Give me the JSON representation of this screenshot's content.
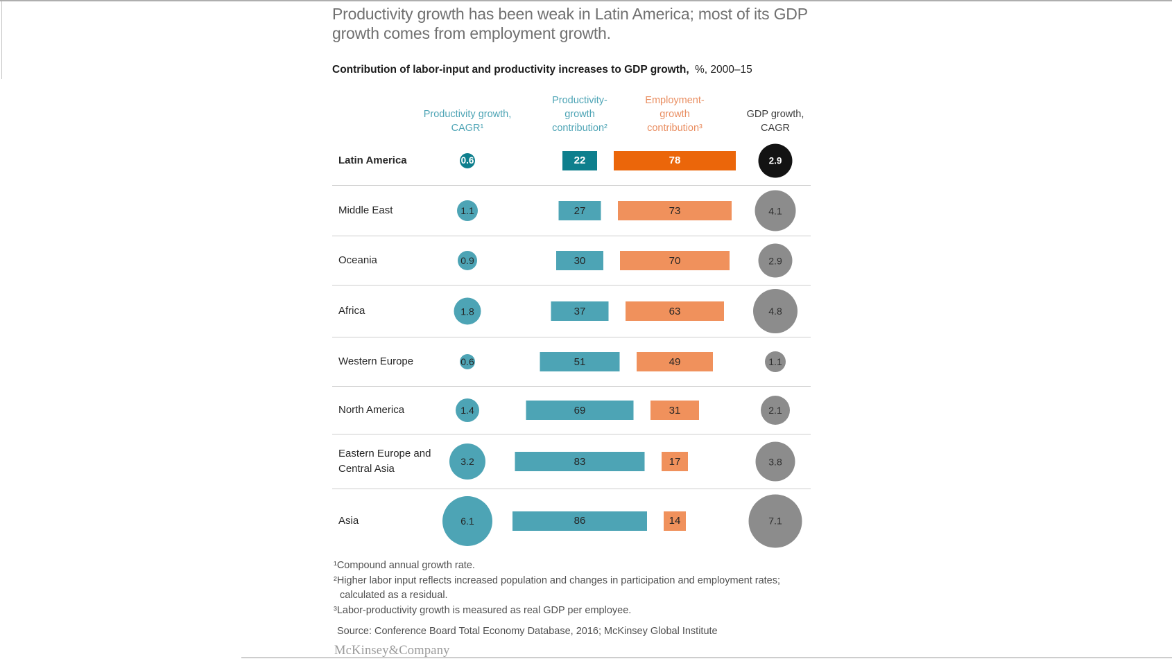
{
  "page": {
    "title": "Productivity growth has been weak in Latin America; most of its GDP growth comes from employment growth.",
    "heading_bold": "Contribution of labor-input and productivity increases to GDP growth,",
    "heading_units": "%, 2000–15",
    "footnotes": [
      "¹Compound annual growth rate.",
      "²Higher labor input reflects increased population and changes in participation and employment rates; calculated as a residual.",
      "³Labor-productivity growth is measured as real GDP per employee."
    ],
    "source": "Source: Conference Board Total Economy Database, 2016; McKinsey Global Institute",
    "logo": "McKinsey&Company"
  },
  "columns": [
    {
      "label": "Productivity growth, CAGR¹",
      "color": "#4da4b5"
    },
    {
      "label": "Productivity-growth contribution²",
      "color": "#4da4b5"
    },
    {
      "label": "Employment-growth contribution³",
      "color": "#e98d60"
    },
    {
      "label": "GDP growth, CAGR",
      "color": "#3c3c3c"
    }
  ],
  "chart_data": {
    "type": "bar",
    "title": "Contribution of labor-input and productivity increases to GDP growth",
    "units": "%",
    "period": "2000–15",
    "categories": [
      "Latin America",
      "Middle East",
      "Oceania",
      "Africa",
      "Western Europe",
      "North America",
      "Eastern Europe and Central Asia",
      "Asia"
    ],
    "series": [
      {
        "name": "Productivity growth, CAGR",
        "display": "circle",
        "values": [
          0.6,
          1.1,
          0.9,
          1.8,
          0.6,
          1.4,
          3.2,
          6.1
        ]
      },
      {
        "name": "Productivity-growth contribution",
        "display": "bar",
        "values": [
          22,
          27,
          30,
          37,
          51,
          69,
          83,
          86
        ]
      },
      {
        "name": "Employment-growth contribution",
        "display": "bar",
        "values": [
          78,
          73,
          70,
          63,
          49,
          31,
          17,
          14
        ]
      },
      {
        "name": "GDP growth, CAGR",
        "display": "circle",
        "values": [
          2.9,
          4.1,
          2.9,
          4.8,
          1.1,
          2.1,
          3.8,
          7.1
        ]
      }
    ],
    "highlighted_category": "Latin America",
    "legend_position": "top",
    "layout_hint": "bar width proportional to percent; circle area proportional to CAGR; bars and circles center-aligned per column"
  },
  "colors": {
    "teal": "#4da4b5",
    "teal_dark": "#0e7f8d",
    "orange": "#f0915c",
    "orange_bright": "#eb660a",
    "gray_circle": "#8c8c8c",
    "black_circle": "#131313",
    "bar_text": "#242424",
    "highlight_text": "#ffffff",
    "divider": "#cccccc"
  }
}
